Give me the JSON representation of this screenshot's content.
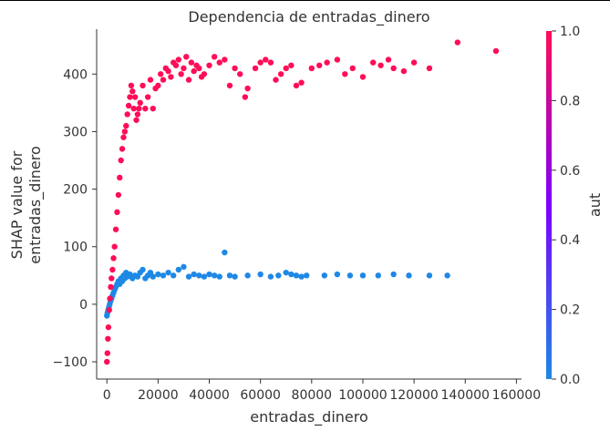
{
  "chart_data": {
    "type": "scatter",
    "title": "Dependencia de entradas_dinero",
    "xlabel": "entradas_dinero",
    "ylabel_lines": [
      "SHAP value for",
      "entradas_dinero"
    ],
    "xlim": [
      -4000,
      162000
    ],
    "ylim": [
      -130,
      478
    ],
    "x_ticks": [
      0,
      20000,
      40000,
      60000,
      80000,
      100000,
      120000,
      140000,
      160000
    ],
    "y_ticks": [
      -100,
      0,
      100,
      200,
      300,
      400
    ],
    "colorbar": {
      "label": "aut",
      "range": [
        0,
        1
      ],
      "ticks": [
        0.0,
        0.2,
        0.4,
        0.6,
        0.8,
        1.0
      ],
      "tick_labels": [
        "0.0",
        "0.2",
        "0.4",
        "0.6",
        "0.8",
        "1.0"
      ],
      "colors": [
        "#1e88e5",
        "#7c00ff",
        "#ff0d57"
      ]
    },
    "series": [
      {
        "aut": 1,
        "color": "#ff0d57",
        "x": [
          0,
          200,
          400,
          600,
          900,
          1200,
          1500,
          1800,
          2200,
          2600,
          3000,
          3500,
          4000,
          4500,
          5000,
          5500,
          6000,
          6500,
          7000,
          7500,
          8000,
          8500,
          9000,
          9500,
          10000,
          10500,
          11000,
          11500,
          12000,
          12500,
          13000,
          14000,
          15000,
          16000,
          17000,
          18000,
          19000,
          20000,
          21000,
          22000,
          23000,
          24000,
          25000,
          26000,
          27000,
          28000,
          29000,
          30000,
          31000,
          32000,
          33000,
          34000,
          35000,
          36000,
          37000,
          38000,
          40000,
          42000,
          44000,
          46000,
          48000,
          50000,
          52000,
          54000,
          55000,
          58000,
          60000,
          62000,
          64000,
          66000,
          68000,
          70000,
          72000,
          74000,
          76000,
          80000,
          83000,
          86000,
          90000,
          93000,
          96000,
          100000,
          104000,
          107000,
          110000,
          112000,
          116000,
          120000,
          126000,
          137000,
          152000
        ],
        "y": [
          -100,
          -85,
          -60,
          -40,
          -10,
          10,
          30,
          45,
          60,
          80,
          100,
          130,
          160,
          190,
          220,
          250,
          270,
          290,
          300,
          310,
          330,
          345,
          360,
          380,
          370,
          340,
          360,
          320,
          330,
          340,
          350,
          380,
          340,
          360,
          390,
          340,
          375,
          380,
          400,
          390,
          410,
          405,
          395,
          420,
          415,
          425,
          400,
          410,
          430,
          390,
          420,
          405,
          415,
          410,
          395,
          400,
          415,
          430,
          420,
          425,
          380,
          410,
          400,
          360,
          375,
          410,
          420,
          425,
          420,
          390,
          400,
          410,
          415,
          380,
          385,
          410,
          415,
          420,
          425,
          400,
          410,
          395,
          420,
          415,
          425,
          410,
          405,
          420,
          410,
          455,
          440
        ]
      },
      {
        "aut": 0,
        "color": "#1e88e5",
        "x": [
          0,
          200,
          500,
          800,
          1100,
          1400,
          1800,
          2200,
          2600,
          3000,
          3500,
          4000,
          4500,
          5000,
          5500,
          6000,
          6500,
          7000,
          7500,
          8000,
          9000,
          10000,
          11000,
          12000,
          13000,
          14000,
          15000,
          16000,
          17000,
          18000,
          20000,
          22000,
          24000,
          26000,
          28000,
          30000,
          32000,
          34000,
          36000,
          38000,
          40000,
          42000,
          44000,
          46000,
          48000,
          50000,
          55000,
          60000,
          64000,
          67000,
          70000,
          72000,
          74000,
          76000,
          78000,
          85000,
          90000,
          95000,
          100000,
          106000,
          112000,
          118000,
          126000,
          133000
        ],
        "y": [
          -20,
          -15,
          -10,
          -5,
          0,
          5,
          10,
          15,
          20,
          25,
          30,
          35,
          40,
          35,
          45,
          40,
          50,
          45,
          55,
          48,
          52,
          45,
          50,
          48,
          55,
          60,
          45,
          50,
          55,
          48,
          52,
          50,
          55,
          50,
          60,
          65,
          48,
          52,
          50,
          48,
          52,
          50,
          48,
          90,
          50,
          48,
          50,
          52,
          48,
          50,
          55,
          52,
          50,
          48,
          50,
          50,
          52,
          50,
          50,
          50,
          52,
          50,
          50,
          50
        ]
      }
    ]
  }
}
